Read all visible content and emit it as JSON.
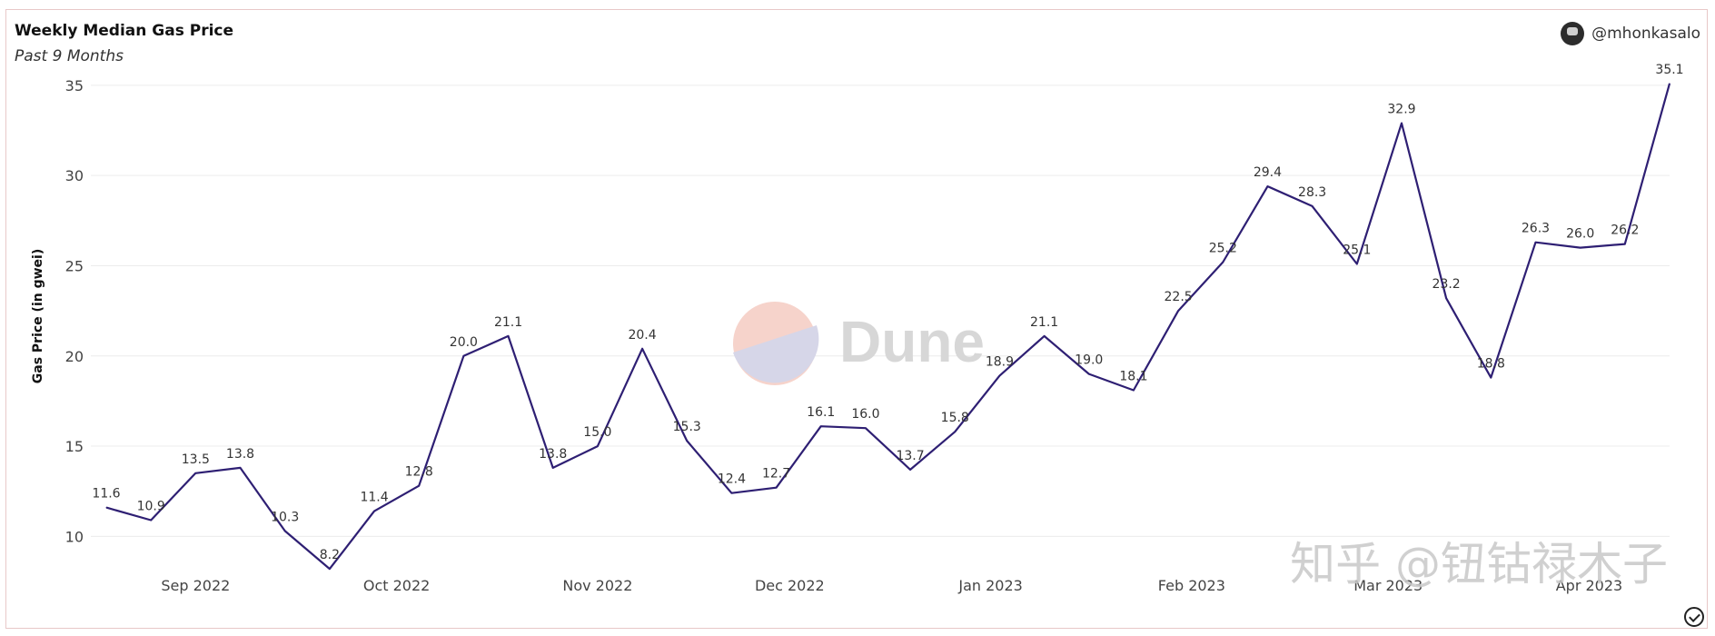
{
  "header": {
    "title": "Weekly Median Gas Price",
    "subtitle": "Past 9 Months",
    "author": "@mhonkasalo",
    "watermark": "Dune",
    "overlay_text": "知乎 @钮钴禄木子"
  },
  "chart_data": {
    "type": "line",
    "title": "Weekly Median Gas Price",
    "subtitle": "Past 9 Months",
    "xlabel": "",
    "ylabel": "Gas Price (in gwei)",
    "ylim": [
      7.5,
      35.8
    ],
    "yticks": [
      10,
      15,
      20,
      25,
      30,
      35
    ],
    "grid": true,
    "line_color": "#2e1f73",
    "x_tick_labels": [
      "Sep 2022",
      "Oct 2022",
      "Nov 2022",
      "Dec 2022",
      "Jan 2023",
      "Feb 2023",
      "Mar 2023",
      "Apr 2023"
    ],
    "x_tick_positions": [
      2.0,
      6.5,
      11.0,
      15.3,
      19.8,
      24.3,
      28.7,
      33.2
    ],
    "series": [
      {
        "values": [
          11.6,
          10.9,
          13.5,
          13.8,
          10.3,
          8.2,
          11.4,
          12.8,
          20.0,
          21.1,
          13.8,
          15.0,
          20.4,
          15.3,
          12.4,
          12.7,
          16.1,
          16.0,
          13.7,
          15.8,
          18.9,
          21.1,
          19.0,
          18.1,
          22.5,
          25.2,
          29.4,
          28.3,
          25.1,
          32.9,
          23.2,
          18.8,
          26.3,
          26.0,
          26.2,
          35.1
        ],
        "labels": [
          "11.6",
          "10.9",
          "13.5",
          "13.8",
          "10.3",
          "8.2",
          "11.4",
          "12.8",
          "20.0",
          "21.1",
          "13.8",
          "15.0",
          "20.4",
          "15.3",
          "12.4",
          "12.7",
          "16.1",
          "16.0",
          "13.7",
          "15.8",
          "18.9",
          "21.1",
          "19.0",
          "18.1",
          "22.5",
          "25.2",
          "29.4",
          "28.3",
          "25.1",
          "32.9",
          "23.2",
          "18.8",
          "26.3",
          "26.0",
          "26.2",
          "35.1"
        ]
      }
    ]
  }
}
